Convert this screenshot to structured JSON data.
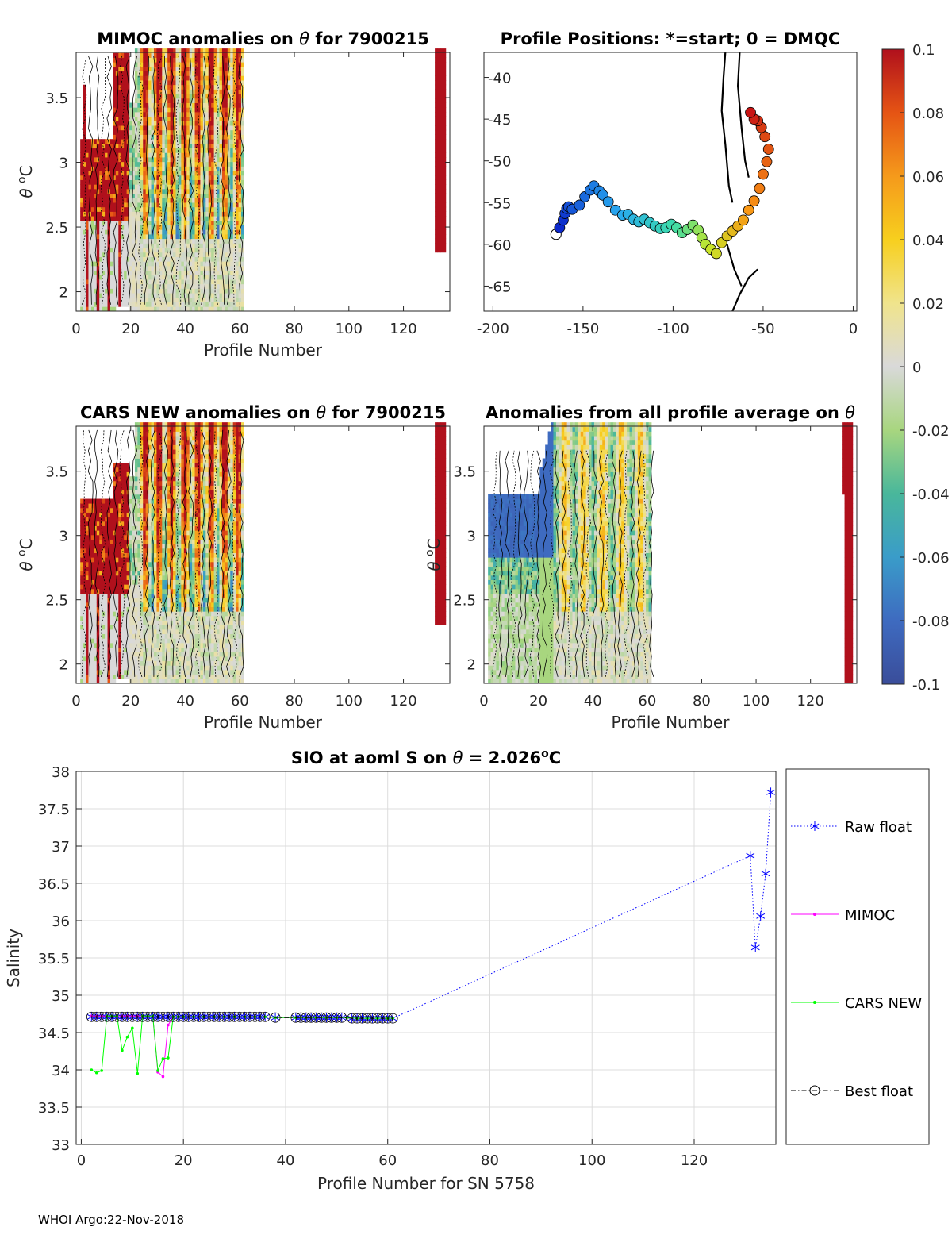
{
  "footer": "WHOI Argo:22-Nov-2018",
  "colorbar": {
    "ticks": [
      "0.1",
      "0.08",
      "0.06",
      "0.04",
      "0.02",
      "0",
      "-0.02",
      "-0.04",
      "-0.06",
      "-0.08",
      "-0.1"
    ],
    "range": [
      -0.1,
      0.1
    ]
  },
  "chart_data": [
    {
      "type": "heatmap",
      "id": "mimoc",
      "title_pre": "MIMOC anomalies on ",
      "title_sym": "θ",
      "title_post": "  for 7900215",
      "xlabel": "Profile Number",
      "ylabel_sym": "θ",
      "ylabel_unit": "C",
      "xlim": [
        0,
        137
      ],
      "ylim": [
        1.85,
        3.85
      ],
      "xticks": [
        "0",
        "20",
        "40",
        "60",
        "80",
        "100",
        "120"
      ],
      "yticks": [
        "2",
        "2.5",
        "3",
        "3.5"
      ]
    },
    {
      "type": "scatter",
      "id": "positions",
      "title": "Profile Positions: *=start; 0 = DMQC",
      "xlim": [
        -205,
        2
      ],
      "ylim": [
        -68,
        -37
      ],
      "xticks": [
        "-200",
        "-150",
        "-100",
        "-50",
        "0"
      ],
      "yticks": [
        "-40",
        "-45",
        "-50",
        "-55",
        "-60",
        "-65"
      ],
      "track_lon": [
        -165,
        -163,
        -161,
        -160,
        -159,
        -158,
        -156,
        -152,
        -149,
        -146,
        -144,
        -141,
        -139,
        -136,
        -132,
        -128,
        -125,
        -122,
        -119,
        -116,
        -113,
        -110,
        -107,
        -104,
        -101,
        -98,
        -95,
        -92,
        -89,
        -86,
        -84,
        -82,
        -79,
        -76,
        -73,
        -70,
        -67,
        -64,
        -61,
        -58,
        -55,
        -52,
        -50,
        -48,
        -47,
        -49,
        -51,
        -53,
        -55,
        -57
      ],
      "track_lat": [
        -58.8,
        -58.0,
        -57.1,
        -56.3,
        -55.7,
        -55.5,
        -55.8,
        -55.3,
        -54.3,
        -53.5,
        -53.0,
        -53.6,
        -54.1,
        -54.9,
        -55.9,
        -56.5,
        -56.4,
        -57.0,
        -57.3,
        -57.0,
        -57.4,
        -57.8,
        -58.1,
        -58.0,
        -57.6,
        -58.0,
        -58.6,
        -58.2,
        -57.7,
        -58.3,
        -59.2,
        -60.0,
        -60.6,
        -61.1,
        -59.8,
        -59.0,
        -58.4,
        -57.8,
        -57.1,
        -55.9,
        -54.8,
        -53.3,
        -51.6,
        -50.1,
        -48.6,
        -47.1,
        -46.0,
        -45.2,
        -45.0,
        -44.2
      ]
    },
    {
      "type": "heatmap",
      "id": "cars",
      "title_pre": "CARS NEW anomalies on ",
      "title_sym": "θ",
      "title_post": " for 7900215",
      "xlabel": "Profile Number",
      "ylabel_sym": "θ",
      "ylabel_unit": "C",
      "xlim": [
        0,
        137
      ],
      "ylim": [
        1.85,
        3.85
      ],
      "xticks": [
        "0",
        "20",
        "40",
        "60",
        "80",
        "100",
        "120"
      ],
      "yticks": [
        "2",
        "2.5",
        "3",
        "3.5"
      ]
    },
    {
      "type": "heatmap",
      "id": "avg",
      "title_pre": "Anomalies from all profile average on ",
      "title_sym": "θ",
      "title_post": "",
      "xlabel": "Profile Number",
      "ylabel_sym": "θ",
      "ylabel_unit": "C",
      "xlim": [
        0,
        137
      ],
      "ylim": [
        1.85,
        3.85
      ],
      "xticks": [
        "0",
        "20",
        "40",
        "60",
        "80",
        "100",
        "120"
      ],
      "yticks": [
        "2",
        "2.5",
        "3",
        "3.5"
      ]
    },
    {
      "type": "line",
      "id": "salinity",
      "title_pre": "SIO at aoml S on ",
      "title_sym": "θ",
      "title_mid": " = 2.026",
      "title_sup": "o",
      "title_post": "C",
      "xlabel": "Profile Number for SN 5758",
      "ylabel": "Salinity",
      "xlim": [
        -1,
        136
      ],
      "ylim": [
        33,
        38
      ],
      "grid": true,
      "xticks": [
        "0",
        "20",
        "40",
        "60",
        "80",
        "100",
        "120"
      ],
      "yticks": [
        "33",
        "33.5",
        "34",
        "34.5",
        "35",
        "35.5",
        "36",
        "36.5",
        "37",
        "37.5",
        "38"
      ],
      "legend": [
        "Raw float",
        "MIMOC",
        "CARS NEW",
        "Best float"
      ],
      "series": [
        {
          "name": "Raw float",
          "x": [
            2,
            3,
            4,
            5,
            6,
            7,
            8,
            9,
            10,
            11,
            12,
            13,
            14,
            15,
            16,
            17,
            18,
            19,
            20,
            21,
            22,
            23,
            24,
            25,
            26,
            27,
            28,
            29,
            30,
            31,
            32,
            33,
            34,
            35,
            36,
            38,
            42,
            43,
            44,
            45,
            46,
            47,
            48,
            49,
            50,
            51,
            53,
            54,
            55,
            56,
            57,
            58,
            59,
            60,
            61,
            131,
            132,
            133,
            134,
            135
          ],
          "y": [
            34.71,
            34.71,
            34.71,
            34.71,
            34.71,
            34.71,
            34.71,
            34.71,
            34.71,
            34.71,
            34.71,
            34.71,
            34.71,
            34.71,
            34.71,
            34.71,
            34.71,
            34.71,
            34.71,
            34.71,
            34.71,
            34.71,
            34.71,
            34.71,
            34.71,
            34.71,
            34.71,
            34.71,
            34.71,
            34.71,
            34.71,
            34.71,
            34.71,
            34.71,
            34.71,
            34.7,
            34.7,
            34.7,
            34.7,
            34.7,
            34.7,
            34.7,
            34.7,
            34.7,
            34.7,
            34.7,
            34.69,
            34.69,
            34.69,
            34.69,
            34.69,
            34.69,
            34.69,
            34.69,
            34.69,
            36.87,
            35.64,
            36.06,
            36.63,
            37.72
          ]
        },
        {
          "name": "MIMOC",
          "x": [
            2,
            3,
            4,
            5,
            6,
            7,
            8,
            9,
            10,
            11,
            12,
            13,
            14,
            15,
            16,
            17,
            18,
            19,
            20,
            22,
            24,
            26,
            28,
            30,
            32,
            34,
            36,
            38,
            42,
            44,
            46,
            48,
            50,
            52,
            54,
            56,
            58,
            60,
            61
          ],
          "y": [
            34.72,
            34.72,
            34.72,
            34.72,
            34.72,
            34.72,
            34.72,
            34.72,
            34.72,
            34.72,
            34.72,
            34.72,
            34.72,
            33.97,
            33.91,
            34.6,
            34.71,
            34.71,
            34.71,
            34.71,
            34.71,
            34.71,
            34.71,
            34.71,
            34.71,
            34.71,
            34.71,
            34.7,
            34.7,
            34.7,
            34.7,
            34.7,
            34.7,
            34.7,
            34.69,
            34.69,
            34.69,
            34.69,
            34.69
          ]
        },
        {
          "name": "CARS NEW",
          "x": [
            2,
            3,
            4,
            5,
            6,
            7,
            8,
            9,
            10,
            11,
            12,
            13,
            14,
            15,
            16,
            17,
            18,
            19,
            20,
            22,
            24,
            26,
            28,
            30,
            32,
            34,
            36,
            38,
            42,
            44,
            46,
            48,
            50,
            52,
            54,
            56,
            58,
            60,
            61
          ],
          "y": [
            34.0,
            33.96,
            33.99,
            34.72,
            34.72,
            34.72,
            34.26,
            34.44,
            34.56,
            33.95,
            34.72,
            34.72,
            34.72,
            33.99,
            34.15,
            34.16,
            34.71,
            34.71,
            34.71,
            34.71,
            34.71,
            34.71,
            34.71,
            34.71,
            34.71,
            34.71,
            34.71,
            34.7,
            34.7,
            34.7,
            34.7,
            34.7,
            34.7,
            34.7,
            34.69,
            34.69,
            34.69,
            34.69,
            34.69
          ]
        },
        {
          "name": "Best float",
          "x": [
            2,
            3,
            4,
            5,
            6,
            7,
            8,
            9,
            10,
            11,
            12,
            13,
            14,
            15,
            16,
            17,
            18,
            19,
            20,
            21,
            22,
            23,
            24,
            25,
            26,
            27,
            28,
            29,
            30,
            31,
            32,
            33,
            34,
            35,
            36,
            38,
            42,
            43,
            44,
            45,
            46,
            47,
            48,
            49,
            50,
            51,
            53,
            54,
            55,
            56,
            57,
            58,
            59,
            60,
            61
          ],
          "y": [
            34.71,
            34.71,
            34.71,
            34.71,
            34.71,
            34.71,
            34.71,
            34.71,
            34.71,
            34.71,
            34.71,
            34.71,
            34.71,
            34.71,
            34.71,
            34.71,
            34.71,
            34.71,
            34.71,
            34.71,
            34.71,
            34.71,
            34.71,
            34.71,
            34.71,
            34.71,
            34.71,
            34.71,
            34.71,
            34.71,
            34.71,
            34.71,
            34.71,
            34.71,
            34.71,
            34.7,
            34.7,
            34.7,
            34.7,
            34.7,
            34.7,
            34.7,
            34.7,
            34.7,
            34.7,
            34.7,
            34.69,
            34.69,
            34.69,
            34.69,
            34.69,
            34.69,
            34.69,
            34.69,
            34.69
          ]
        }
      ]
    }
  ]
}
